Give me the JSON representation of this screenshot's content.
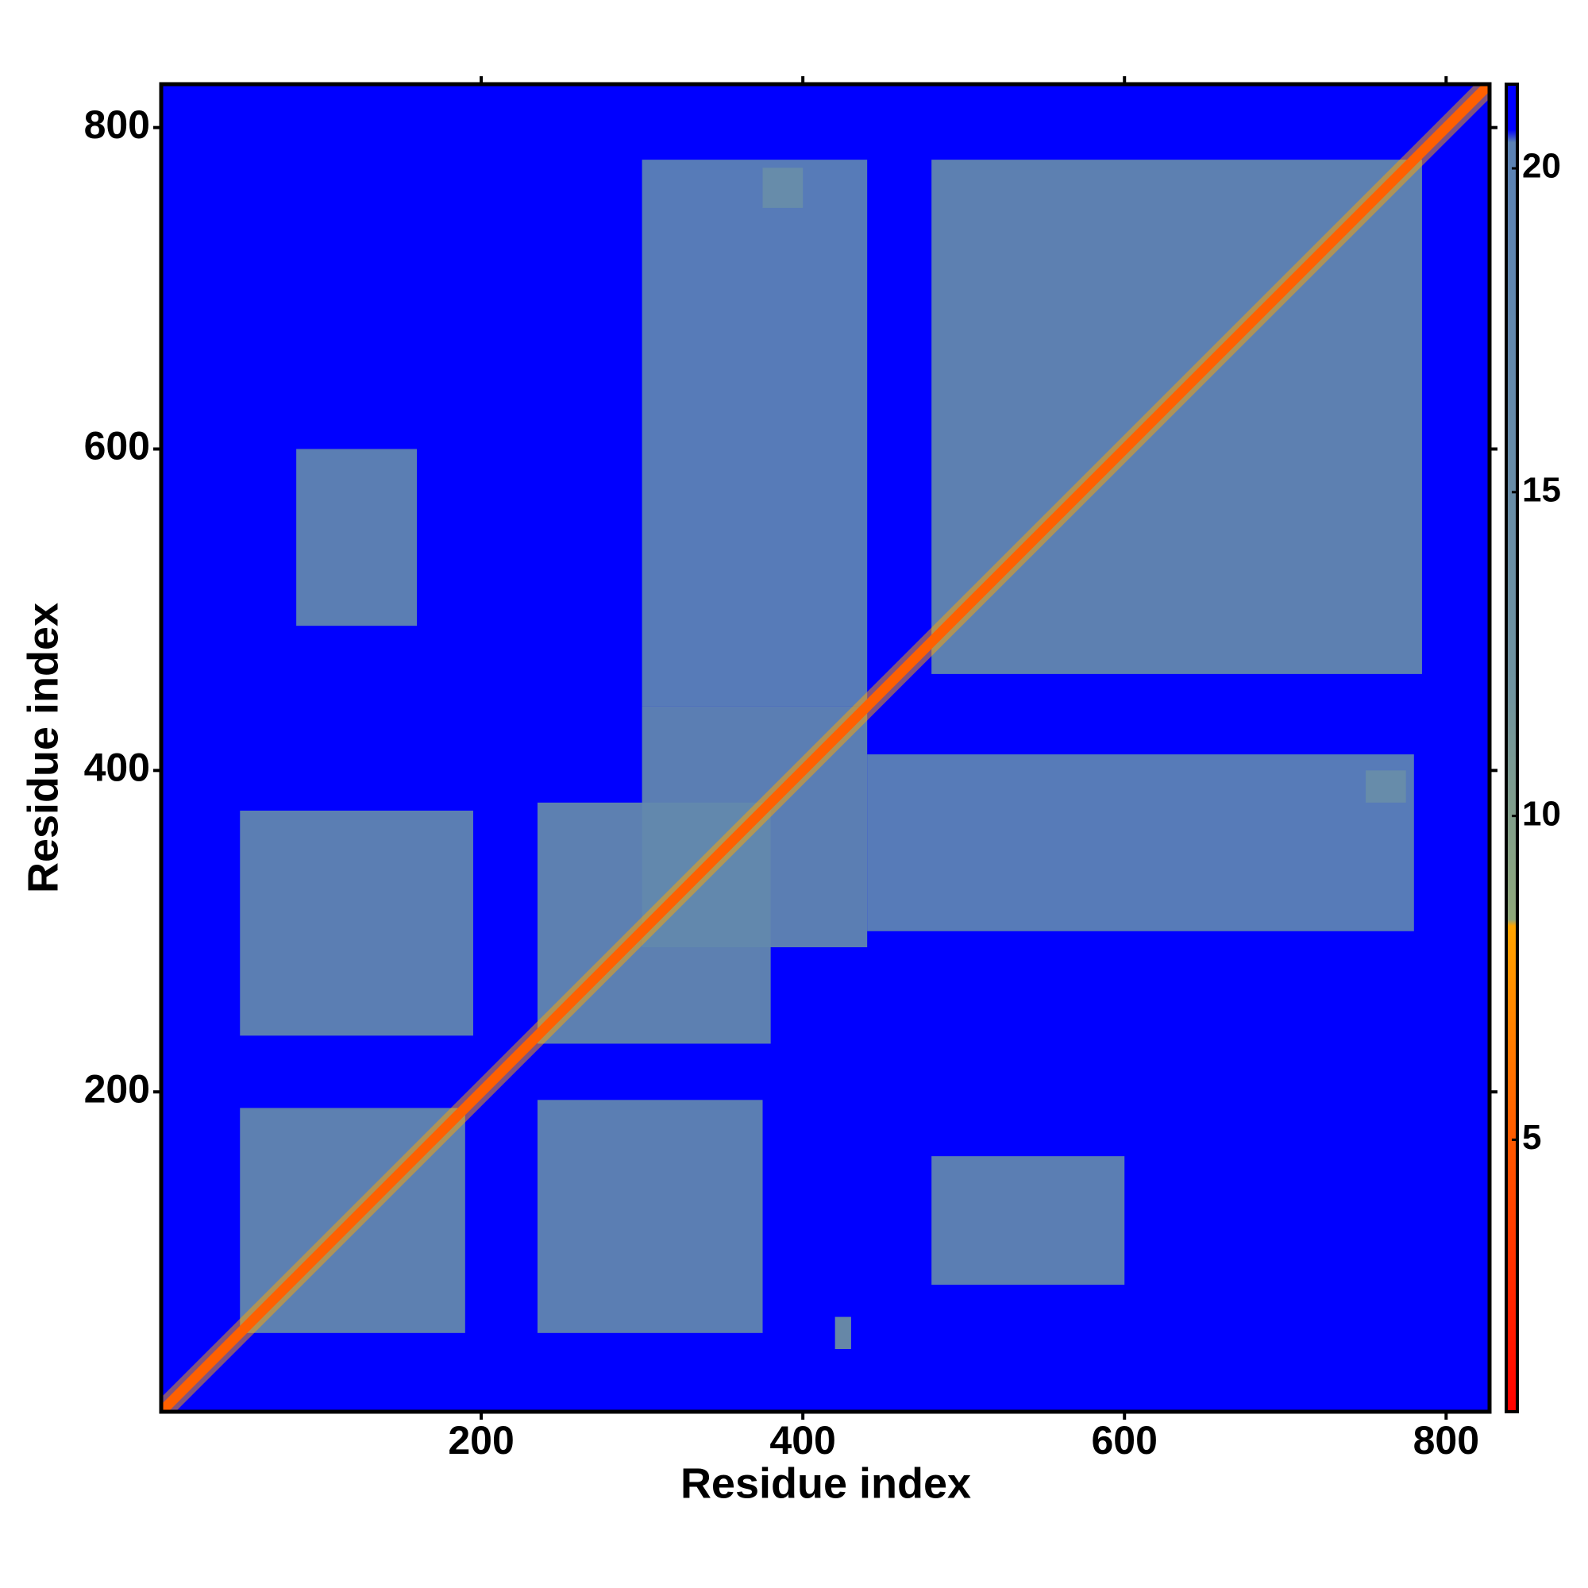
{
  "chart_data": {
    "type": "heatmap",
    "x_label": "Residue index",
    "y_label": "Residue index",
    "xlim": [
      1,
      827
    ],
    "ylim": [
      1,
      827
    ],
    "xticks": [
      200,
      400,
      600,
      800
    ],
    "yticks": [
      200,
      400,
      600,
      800
    ],
    "background_value": 21,
    "diagonal_value": 2,
    "regions": [
      {
        "x": [
          50,
          190
        ],
        "y": [
          50,
          190
        ],
        "value": 16
      },
      {
        "x": [
          235,
          380
        ],
        "y": [
          230,
          380
        ],
        "value": 16
      },
      {
        "x": [
          300,
          440
        ],
        "y": [
          290,
          440
        ],
        "value": 17
      },
      {
        "x": [
          480,
          785
        ],
        "y": [
          460,
          780
        ],
        "value": 16
      },
      {
        "x": [
          50,
          195
        ],
        "y": [
          235,
          375
        ],
        "value": 17
      },
      {
        "x": [
          235,
          375
        ],
        "y": [
          50,
          195
        ],
        "value": 17
      },
      {
        "x": [
          300,
          440
        ],
        "y": [
          440,
          780
        ],
        "value": 19
      },
      {
        "x": [
          440,
          780
        ],
        "y": [
          300,
          410
        ],
        "value": 19
      },
      {
        "x": [
          85,
          160
        ],
        "y": [
          490,
          600
        ],
        "value": 17
      },
      {
        "x": [
          480,
          600
        ],
        "y": [
          80,
          160
        ],
        "value": 17
      },
      {
        "x": [
          375,
          400
        ],
        "y": [
          750,
          775
        ],
        "value": 15
      },
      {
        "x": [
          750,
          775
        ],
        "y": [
          380,
          400
        ],
        "value": 15
      },
      {
        "x": [
          420,
          430
        ],
        "y": [
          40,
          60
        ],
        "value": 12
      }
    ],
    "colorbar_lim": [
      0.8,
      21.3
    ],
    "colorbar_ticks": [
      5,
      10,
      15,
      20
    ],
    "colorscale": [
      {
        "value": 0.8,
        "color": "#ff0000"
      },
      {
        "value": 5,
        "color": "#ff5a00"
      },
      {
        "value": 8.3,
        "color": "#ffa500"
      },
      {
        "value": 8.4,
        "color": "#8fa87a"
      },
      {
        "value": 12,
        "color": "#6f93a0"
      },
      {
        "value": 20.4,
        "color": "#5b82b5"
      },
      {
        "value": 20.6,
        "color": "#0000ff"
      },
      {
        "value": 21.3,
        "color": "#0000ff"
      }
    ]
  }
}
